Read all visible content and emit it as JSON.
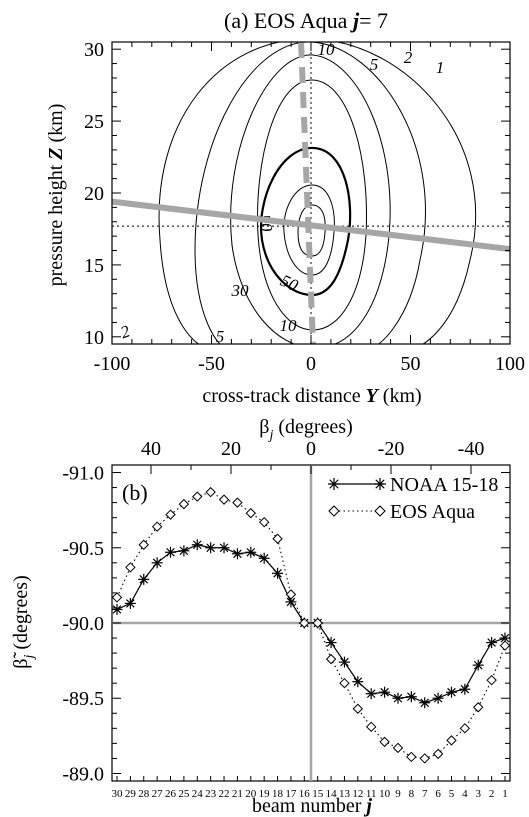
{
  "chart_data": [
    {
      "panel": "a",
      "type": "contour",
      "title_prefix": "(a) EOS Aqua ",
      "title_var": "j",
      "title_suffix": "= 7",
      "xlabel_text": "cross-track distance ",
      "xlabel_var": "Y",
      "xlabel_unit": " (km)",
      "ylabel_text": "pressure height ",
      "ylabel_var": "Z",
      "ylabel_unit": " (km)",
      "xlim": [
        -100,
        100
      ],
      "ylim": [
        9.5,
        30.5
      ],
      "xticks": [
        -100,
        -50,
        0,
        50,
        100
      ],
      "yticks": [
        10,
        15,
        20,
        25,
        30
      ],
      "center": {
        "y": 0,
        "z": 17.7
      },
      "contour_levels_percent": [
        1,
        2,
        5,
        10,
        30,
        50
      ],
      "contour_labels": [
        "10",
        "5",
        "2",
        "1",
        "50",
        "30",
        "50",
        "10",
        "2",
        "5"
      ],
      "cross_track_line": {
        "y0": -100,
        "z0": 19.4,
        "y1": 100,
        "z1": 16.1
      },
      "dashed_line": {
        "y0": -5,
        "z0": 30.5,
        "y1": 1,
        "z1": 9.5
      },
      "ref_lines": {
        "x": 0,
        "y": 17.7
      }
    },
    {
      "panel": "b",
      "type": "line",
      "label": "(b)",
      "ylabel": "β̃",
      "ylabel_sub": "j",
      "ylabel_unit": " (degrees)",
      "xlabel_text": "beam number ",
      "xlabel_var": "j",
      "top_axis_label": "β",
      "top_axis_sub": "j",
      "top_axis_unit": " (degrees)",
      "top_ticks": [
        "40",
        "20",
        "0",
        "-20",
        "-40"
      ],
      "yticks": [
        "-91.0",
        "-90.5",
        "-90.0",
        "-89.5",
        "-89.0"
      ],
      "ylim": [
        -91.05,
        -88.95
      ],
      "x_categories": [
        30,
        29,
        28,
        27,
        26,
        25,
        24,
        23,
        22,
        21,
        20,
        19,
        18,
        17,
        16,
        15,
        14,
        13,
        12,
        11,
        10,
        9,
        8,
        7,
        6,
        5,
        4,
        3,
        2,
        1
      ],
      "series": [
        {
          "name": "NOAA 15-18",
          "marker": "asterisk",
          "line": "solid",
          "values": [
            -90.09,
            -90.13,
            -90.29,
            -90.4,
            -90.47,
            -90.48,
            -90.52,
            -90.5,
            -90.5,
            -90.46,
            -90.47,
            -90.43,
            -90.33,
            -90.14,
            -90.0,
            -90.0,
            -89.87,
            -89.74,
            -89.61,
            -89.53,
            -89.54,
            -89.5,
            -89.51,
            -89.47,
            -89.5,
            -89.54,
            -89.56,
            -89.72,
            -89.87,
            -89.9
          ]
        },
        {
          "name": "EOS Aqua",
          "marker": "diamond",
          "line": "dotted",
          "values": [
            -90.17,
            -90.37,
            -90.52,
            -90.64,
            -90.72,
            -90.79,
            -90.84,
            -90.87,
            -90.82,
            -90.8,
            -90.73,
            -90.67,
            -90.56,
            -90.19,
            -90.0,
            -90.0,
            -89.76,
            -89.6,
            -89.43,
            -89.31,
            -89.21,
            -89.17,
            -89.11,
            -89.1,
            -89.13,
            -89.22,
            -89.3,
            -89.44,
            -89.62,
            -89.85
          ]
        }
      ]
    }
  ]
}
